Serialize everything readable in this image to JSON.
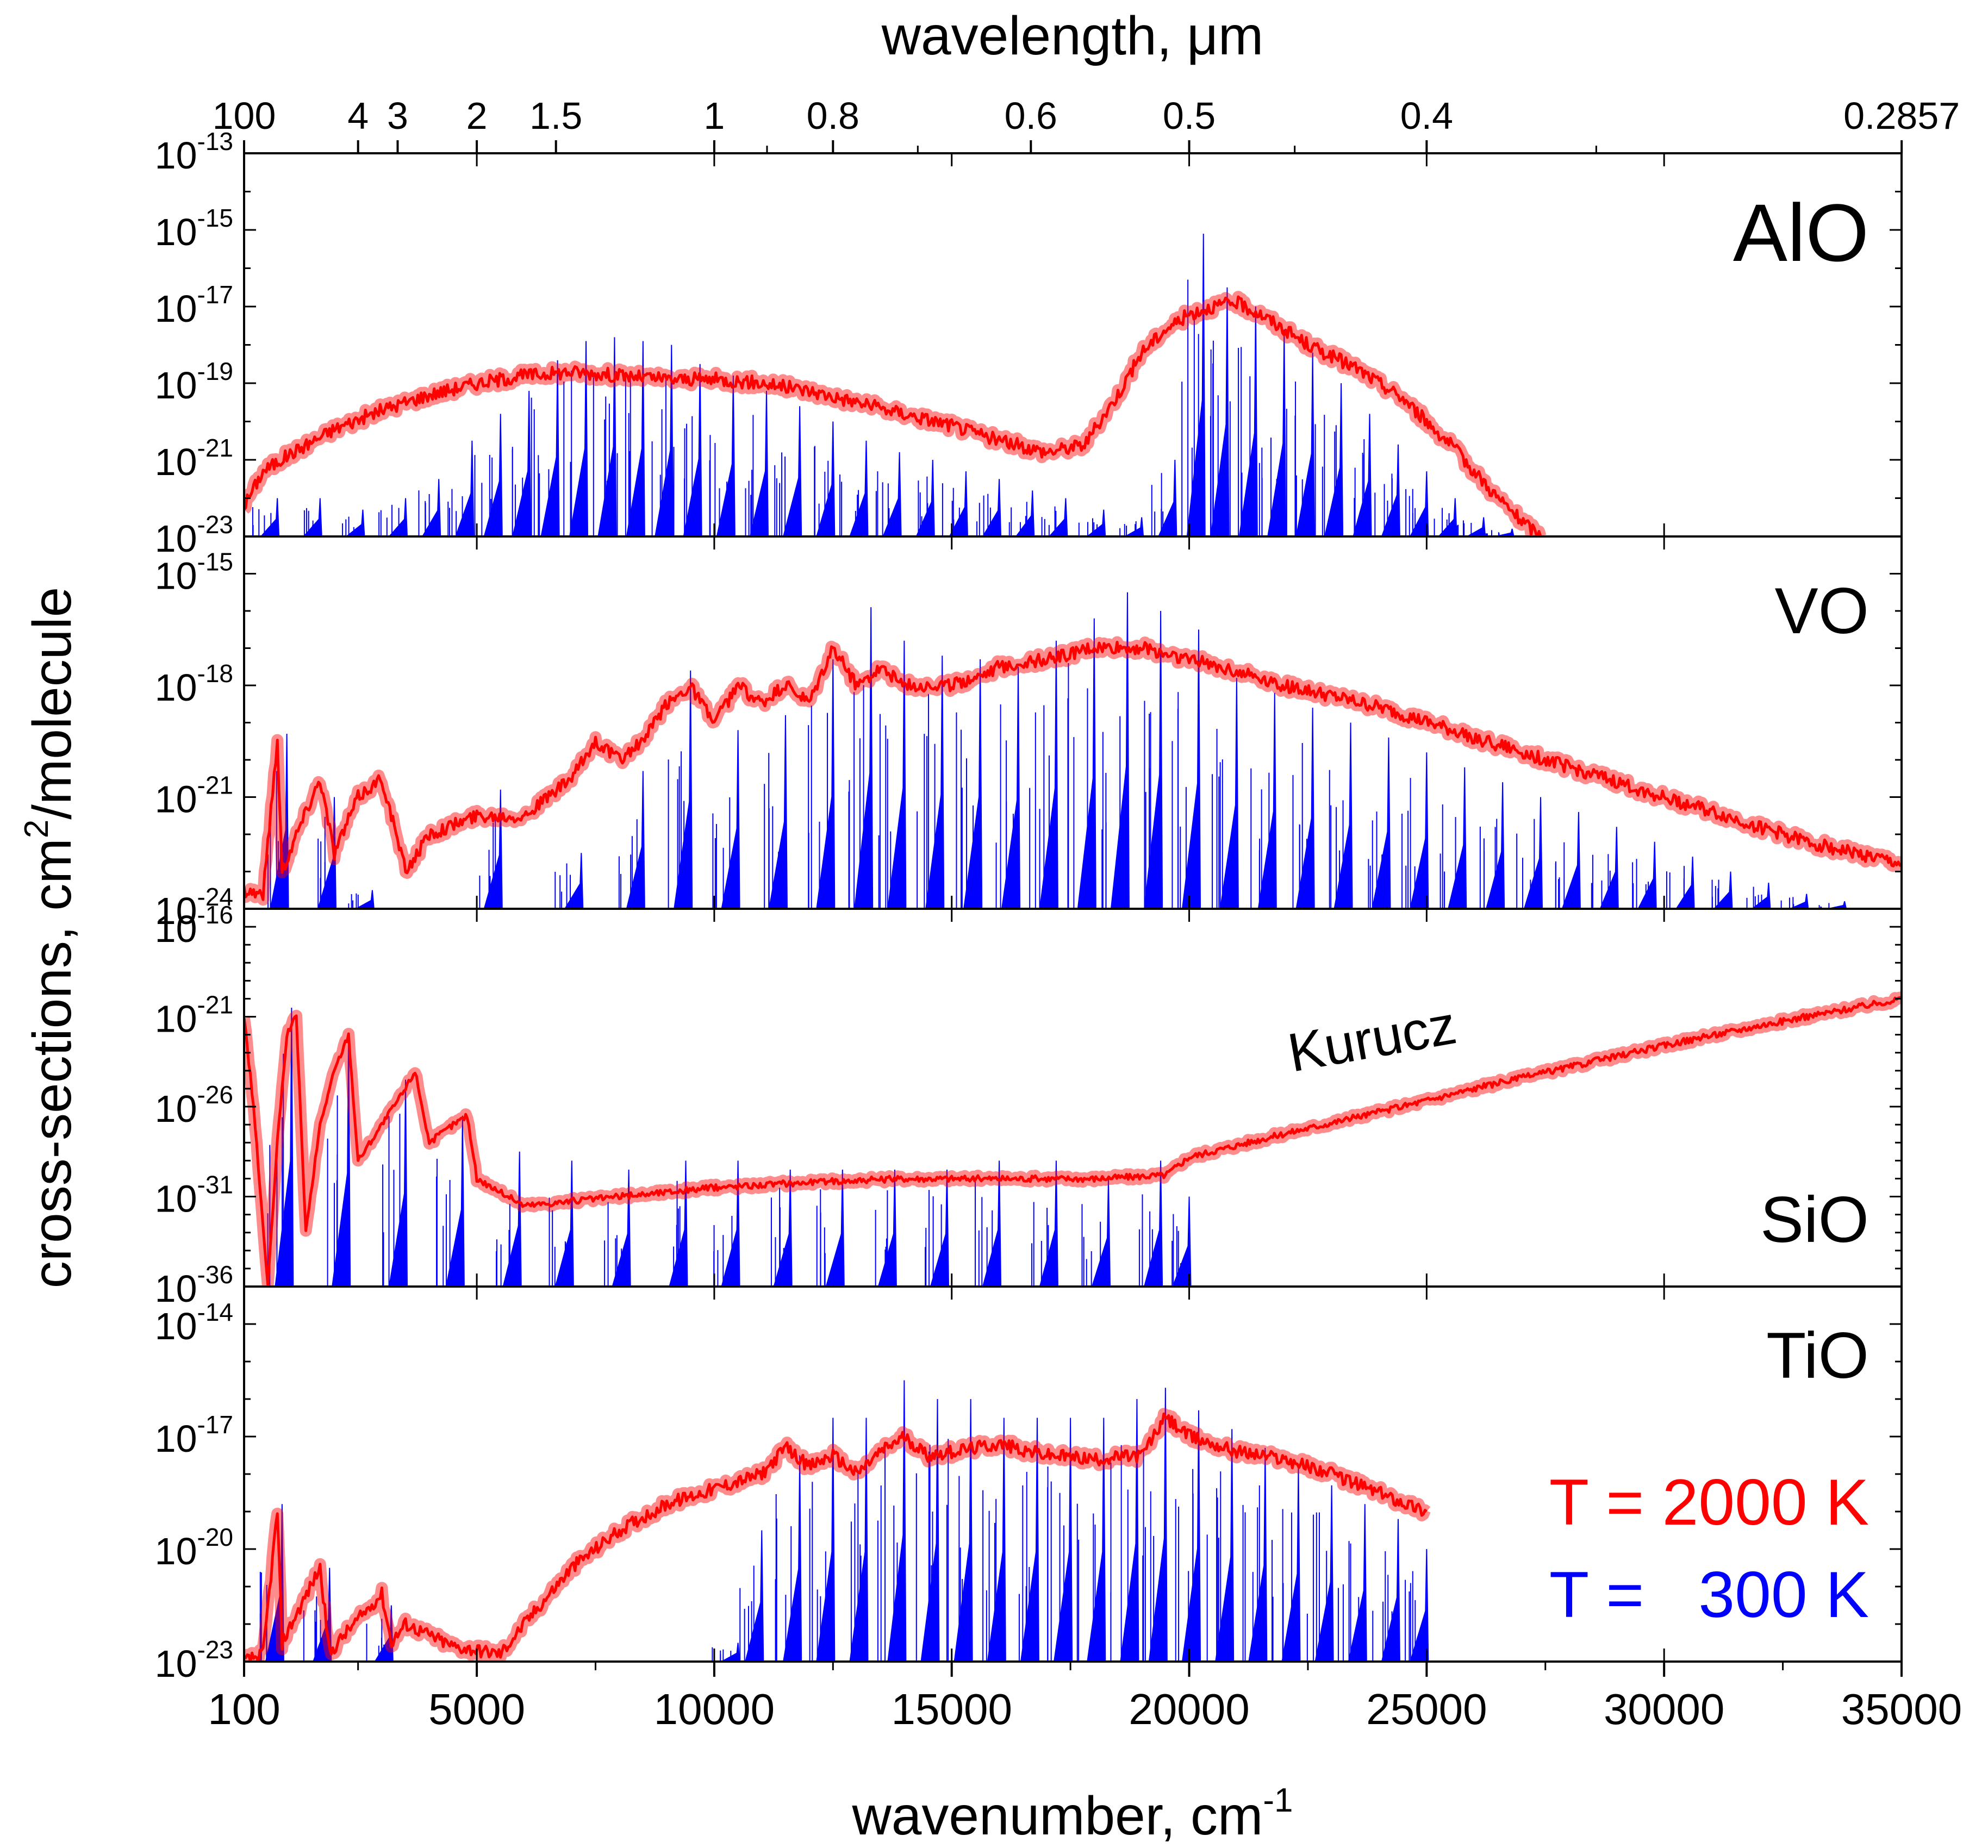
{
  "figure": {
    "top_axis_title": "wavelength, μm",
    "bottom_axis_title": "wavenumber, cm",
    "bottom_axis_title_sup": "-1",
    "y_axis_title_pre": "cross-sections, cm",
    "y_axis_title_sup": "2",
    "y_axis_title_post": "/molecule"
  },
  "legend": {
    "red_label": "T = 2000 K",
    "blue_label": "T =   300 K",
    "red_color": "#ff0000",
    "blue_color": "#0000ff"
  },
  "chart_data": [
    {
      "type": "line",
      "molecule": "AlO",
      "title": "AlO",
      "x_range": [
        100,
        35000
      ],
      "y_log_range": [
        -23,
        -13
      ],
      "y_ticks_exp": [
        "-23",
        "-21",
        "-19",
        "-17",
        "-15",
        "-13"
      ],
      "series": [
        {
          "name": "T = 2000 K",
          "color": "#ff0000",
          "x": [
            100,
            500,
            1000,
            2000,
            3000,
            4000,
            5000,
            6000,
            7000,
            8000,
            9000,
            10000,
            11000,
            12000,
            13000,
            14000,
            15000,
            16000,
            17000,
            17800,
            18500,
            19000,
            19500,
            20000,
            20500,
            21000,
            21500,
            22000,
            22500,
            23000,
            23500,
            24000,
            24500,
            25000,
            25500,
            26000,
            26500,
            27000,
            27400
          ],
          "log_y": [
            -22.2,
            -21.3,
            -20.9,
            -20.2,
            -19.7,
            -19.3,
            -19.0,
            -18.8,
            -18.7,
            -18.8,
            -18.9,
            -18.9,
            -19.0,
            -19.2,
            -19.5,
            -19.8,
            -20.1,
            -20.5,
            -20.8,
            -20.6,
            -19.3,
            -18.2,
            -17.6,
            -17.2,
            -17.0,
            -16.9,
            -17.2,
            -17.6,
            -18.0,
            -18.3,
            -18.6,
            -19.0,
            -19.4,
            -20.0,
            -20.6,
            -21.3,
            -22.0,
            -22.6,
            -23.0
          ]
        },
        {
          "name": "T = 300 K",
          "color": "#0000ff",
          "peaks_x": [
            800,
            1700,
            2600,
            3500,
            4200,
            4900,
            5500,
            6100,
            6700,
            7300,
            7900,
            8500,
            9100,
            9700,
            10400,
            11100,
            11800,
            12500,
            13200,
            13900,
            14600,
            15300,
            16000,
            16700,
            17400,
            18200,
            19000,
            19700,
            20300,
            20800,
            21400,
            22000,
            22600,
            23200,
            23800,
            24400,
            25000,
            25600,
            26200,
            26800,
            27400
          ],
          "peaks_log_y": [
            -22.0,
            -22.0,
            -22.3,
            -22.0,
            -21.5,
            -20.5,
            -19.8,
            -19.2,
            -18.4,
            -17.9,
            -17.8,
            -17.9,
            -18.0,
            -18.5,
            -18.8,
            -19.2,
            -19.6,
            -20.0,
            -20.5,
            -20.8,
            -21.0,
            -21.3,
            -21.5,
            -21.8,
            -22.0,
            -22.3,
            -22.5,
            -21.0,
            -15.1,
            -16.5,
            -17.0,
            -17.6,
            -18.2,
            -19.0,
            -19.8,
            -20.6,
            -21.3,
            -22.0,
            -22.5,
            -22.8,
            -23.0
          ]
        }
      ]
    },
    {
      "type": "line",
      "molecule": "VO",
      "title": "VO",
      "x_range": [
        100,
        35000
      ],
      "y_log_range": [
        -24,
        -14
      ],
      "y_ticks_exp": [
        "-24",
        "-21",
        "-18",
        "-15"
      ],
      "series": [
        {
          "name": "T = 2000 K",
          "color": "#ff0000",
          "x": [
            100,
            500,
            800,
            900,
            1200,
            1700,
            2000,
            2500,
            3000,
            3500,
            4000,
            5000,
            6000,
            7000,
            7500,
            8000,
            8500,
            9000,
            9500,
            10000,
            10500,
            11000,
            11500,
            12000,
            12500,
            13000,
            13500,
            14000,
            15000,
            16000,
            17000,
            18000,
            19000,
            20000,
            21000,
            22000,
            23000,
            24000,
            25000,
            26000,
            27000,
            28000,
            29000,
            30000,
            31000,
            32000,
            33000,
            34000,
            35000
          ],
          "log_y": [
            -23.5,
            -23.6,
            -19.5,
            -23.0,
            -22.0,
            -20.5,
            -22.5,
            -21.0,
            -20.5,
            -23.0,
            -22.0,
            -21.5,
            -21.5,
            -20.5,
            -19.5,
            -20.0,
            -19.5,
            -18.5,
            -18.0,
            -19.0,
            -18.0,
            -18.5,
            -18.0,
            -18.5,
            -17.0,
            -18.0,
            -17.5,
            -18.0,
            -18.0,
            -17.5,
            -17.3,
            -17.0,
            -17.0,
            -17.3,
            -17.6,
            -18.0,
            -18.3,
            -18.6,
            -19.0,
            -19.4,
            -19.8,
            -20.2,
            -20.6,
            -21.0,
            -21.4,
            -21.8,
            -22.2,
            -22.5,
            -22.8
          ]
        },
        {
          "name": "T = 300 K",
          "color": "#0000ff",
          "peaks_x": [
            1000,
            2000,
            2800,
            4000,
            5500,
            7200,
            8500,
            9500,
            10500,
            11500,
            12500,
            13300,
            14000,
            14800,
            15600,
            16400,
            17200,
            18000,
            18700,
            19400,
            20200,
            21000,
            21800,
            22600,
            23400,
            24200,
            25000,
            25800,
            26600,
            27400,
            28200,
            29000,
            29800,
            30600,
            31400,
            32200,
            33000,
            33800,
            34600
          ],
          "peaks_log_y": [
            -19.3,
            -21.0,
            -23.5,
            -24.0,
            -20.8,
            -22.5,
            -20.3,
            -17.6,
            -19.2,
            -18.8,
            -17.3,
            -15.9,
            -16.8,
            -17.2,
            -17.3,
            -17.5,
            -16.8,
            -16.2,
            -15.5,
            -16.0,
            -16.5,
            -17.8,
            -18.2,
            -18.6,
            -19.0,
            -19.4,
            -19.8,
            -20.2,
            -20.6,
            -21.0,
            -21.4,
            -21.8,
            -22.2,
            -22.6,
            -23.0,
            -23.3,
            -23.6,
            -23.8,
            -24.0
          ]
        }
      ]
    },
    {
      "type": "line",
      "molecule": "SiO",
      "title": "SiO",
      "annotation": "Kurucz",
      "x_range": [
        100,
        35000
      ],
      "y_log_range": [
        -36,
        -15
      ],
      "y_ticks_exp": [
        "-36",
        "-31",
        "-26",
        "-21",
        "-16"
      ],
      "series": [
        {
          "name": "T = 2000 K",
          "color": "#ff0000",
          "x": [
            100,
            300,
            600,
            800,
            1000,
            1200,
            1400,
            1700,
            2000,
            2300,
            2500,
            3000,
            3500,
            3700,
            4000,
            4500,
            4800,
            5000,
            6000,
            8000,
            10000,
            12000,
            14000,
            16000,
            18000,
            19500,
            20000,
            22000,
            24000,
            26000,
            28000,
            30000,
            32000,
            34000,
            35000
          ],
          "log_y": [
            -21.0,
            -26.0,
            -36.0,
            -28.0,
            -22.0,
            -21.0,
            -33.0,
            -27.0,
            -24.0,
            -22.0,
            -29.0,
            -27.0,
            -25.0,
            -24.0,
            -28.0,
            -27.0,
            -26.5,
            -30.0,
            -31.5,
            -31.0,
            -30.5,
            -30.2,
            -30.0,
            -30.0,
            -30.0,
            -29.8,
            -28.8,
            -27.5,
            -26.3,
            -25.0,
            -23.8,
            -22.6,
            -21.5,
            -20.5,
            -20.0
          ]
        },
        {
          "name": "T = 300 K",
          "color": "#0000ff",
          "peaks_x": [
            1100,
            2300,
            3500,
            4700,
            5900,
            7000,
            8200,
            9400,
            10500,
            11600,
            12700,
            13800,
            14900,
            16000,
            17200,
            18300,
            19400,
            20000
          ],
          "peaks_log_y": [
            -20.5,
            -22.0,
            -24.5,
            -26.5,
            -28.5,
            -29.0,
            -29.5,
            -29.0,
            -29.0,
            -29.5,
            -29.5,
            -29.5,
            -29.5,
            -29.0,
            -29.0,
            -30.0,
            -29.0,
            -31.0
          ]
        }
      ]
    },
    {
      "type": "line",
      "molecule": "TiO",
      "title": "TiO",
      "x_range": [
        100,
        35000
      ],
      "y_log_range": [
        -23,
        -13
      ],
      "y_ticks_exp": [
        "-23",
        "-20",
        "-17",
        "-14"
      ],
      "series": [
        {
          "name": "T = 2000 K",
          "color": "#ff0000",
          "x": [
            100,
            500,
            800,
            900,
            1100,
            1700,
            1900,
            2200,
            3000,
            3200,
            3500,
            4500,
            5500,
            6000,
            7000,
            8000,
            9000,
            10000,
            11000,
            11500,
            12000,
            12500,
            13000,
            13500,
            14000,
            14500,
            15000,
            16000,
            17000,
            18000,
            19000,
            19500,
            20000,
            21000,
            22000,
            23000,
            24000,
            25000
          ],
          "log_y": [
            -23.0,
            -22.8,
            -19.0,
            -22.5,
            -22.0,
            -20.5,
            -22.8,
            -22.3,
            -21.2,
            -22.5,
            -22.0,
            -22.6,
            -22.8,
            -22.0,
            -20.5,
            -19.5,
            -18.8,
            -18.4,
            -18.0,
            -17.3,
            -17.8,
            -17.5,
            -18.0,
            -17.4,
            -17.0,
            -17.5,
            -17.4,
            -17.2,
            -17.5,
            -17.6,
            -17.5,
            -16.5,
            -17.0,
            -17.4,
            -17.6,
            -18.0,
            -18.5,
            -19.0
          ]
        },
        {
          "name": "T = 300 K",
          "color": "#0000ff",
          "peaks_x": [
            900,
            1900,
            3200,
            10500,
            11000,
            11800,
            12500,
            13200,
            14000,
            14700,
            15400,
            16100,
            16800,
            17500,
            18200,
            18900,
            19500,
            20200,
            20900,
            21600,
            22300,
            23000,
            23700,
            24400,
            25000
          ],
          "peaks_log_y": [
            -18.8,
            -20.5,
            -21.5,
            -22.5,
            -19.5,
            -17.5,
            -16.5,
            -16.5,
            -15.5,
            -16.0,
            -16.0,
            -16.5,
            -16.5,
            -16.5,
            -16.5,
            -16.0,
            -15.7,
            -16.3,
            -16.8,
            -17.3,
            -17.8,
            -18.3,
            -18.8,
            -19.2,
            -20.0
          ]
        }
      ]
    }
  ],
  "x_axis": {
    "ticks": [
      100,
      5000,
      10000,
      15000,
      20000,
      25000,
      30000,
      35000
    ],
    "tick_labels": [
      "100",
      "5000",
      "10000",
      "15000",
      "20000",
      "25000",
      "30000",
      "35000"
    ]
  },
  "top_axis": {
    "ticks_um": [
      100,
      4,
      3,
      2,
      1.5,
      1,
      0.8,
      0.6,
      0.5,
      0.4,
      0.2857
    ],
    "tick_labels": [
      "100",
      "4",
      "3",
      "2",
      "1.5",
      "1",
      "0.8",
      "0.6",
      "0.5",
      "0.4",
      "0.2857"
    ]
  }
}
